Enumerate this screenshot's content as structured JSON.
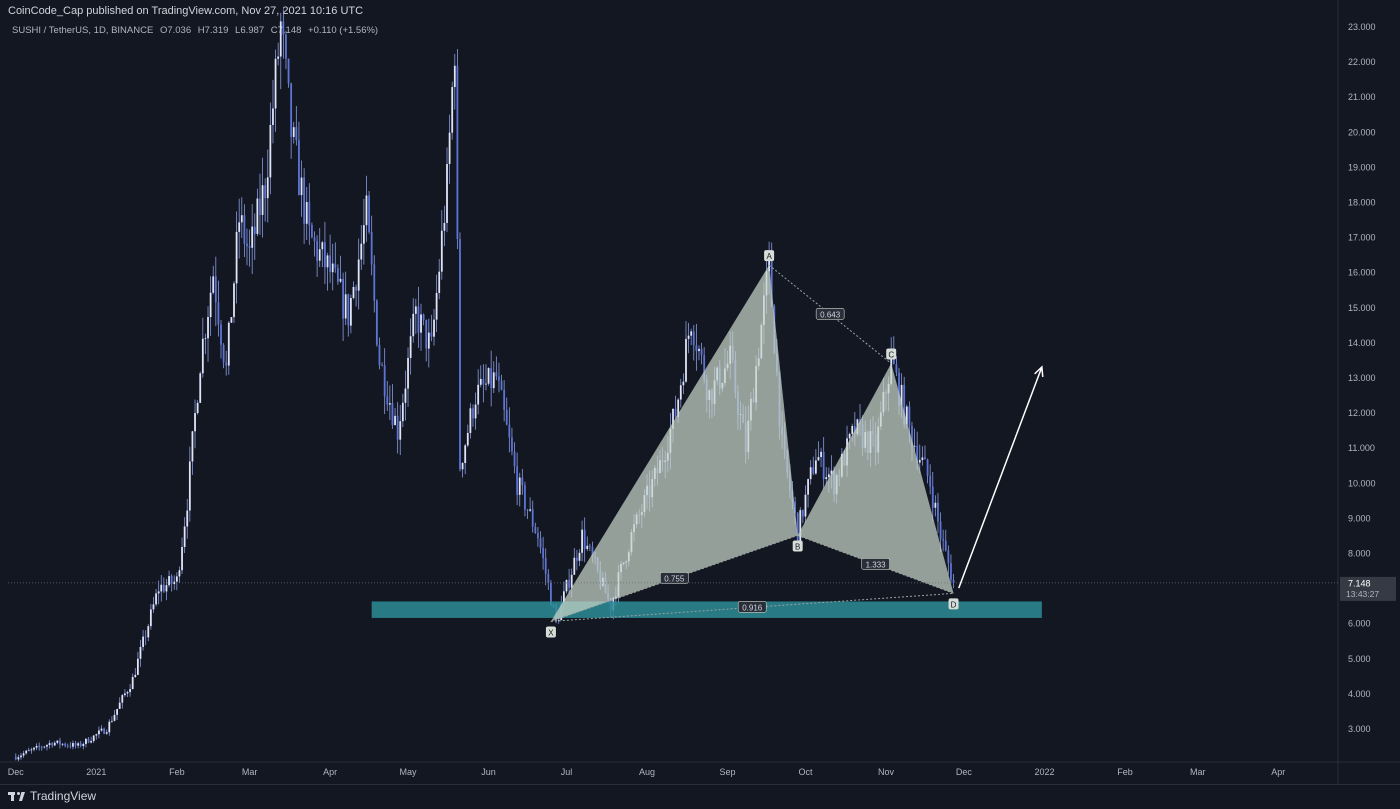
{
  "header": {
    "publisher_line": "CoinCode_Cap published on TradingView.com, Nov 27, 2021 10:16 UTC"
  },
  "legend": {
    "symbol": "SUSHI / TetherUS, 1D, BINANCE",
    "open": "O7.036",
    "high": "H7.319",
    "low": "L6.987",
    "close": "C7.148",
    "change": "+0.110 (+1.56%)"
  },
  "footer": {
    "brand": "TradingView"
  },
  "chart_data": {
    "type": "candlestick",
    "x_axis_labels": [
      "Dec",
      "2021",
      "Feb",
      "Mar",
      "Apr",
      "May",
      "Jun",
      "Jul",
      "Aug",
      "Sep",
      "Oct",
      "Nov",
      "Dec",
      "2022",
      "Feb",
      "Mar",
      "Apr"
    ],
    "y_axis_labels": [
      "3.000",
      "4.000",
      "5.000",
      "6.000",
      "7.000",
      "8.000",
      "9.000",
      "10.000",
      "11.000",
      "12.000",
      "13.000",
      "14.000",
      "15.000",
      "16.000",
      "17.000",
      "18.000",
      "19.000",
      "20.000",
      "21.000",
      "22.000",
      "23.000"
    ],
    "ylim": [
      2.0,
      23.2
    ],
    "last_price": "7.148",
    "countdown": "13:43:27",
    "price_path": [
      [
        "2020-12-01",
        2.2
      ],
      [
        "2020-12-15",
        2.6
      ],
      [
        "2020-12-25",
        2.5
      ],
      [
        "2021-01-05",
        3.0
      ],
      [
        "2021-01-15",
        4.4
      ],
      [
        "2021-01-25",
        7.0
      ],
      [
        "2021-02-01",
        7.2
      ],
      [
        "2021-02-05",
        9.5
      ],
      [
        "2021-02-10",
        13.5
      ],
      [
        "2021-02-15",
        16.0
      ],
      [
        "2021-02-20",
        13.2
      ],
      [
        "2021-02-25",
        17.5
      ],
      [
        "2021-03-01",
        16.5
      ],
      [
        "2021-03-07",
        18.5
      ],
      [
        "2021-03-13",
        23.0
      ],
      [
        "2021-03-17",
        20.0
      ],
      [
        "2021-03-24",
        17.0
      ],
      [
        "2021-04-01",
        16.0
      ],
      [
        "2021-04-08",
        14.8
      ],
      [
        "2021-04-15",
        17.6
      ],
      [
        "2021-04-20",
        13.5
      ],
      [
        "2021-04-27",
        11.5
      ],
      [
        "2021-05-04",
        14.8
      ],
      [
        "2021-05-10",
        13.8
      ],
      [
        "2021-05-16",
        18.5
      ],
      [
        "2021-05-19",
        22.5
      ],
      [
        "2021-05-21",
        10.5
      ],
      [
        "2021-05-27",
        12.5
      ],
      [
        "2021-06-04",
        13.0
      ],
      [
        "2021-06-12",
        10.0
      ],
      [
        "2021-06-20",
        8.5
      ],
      [
        "2021-06-27",
        6.0
      ],
      [
        "2021-07-07",
        8.5
      ],
      [
        "2021-07-18",
        6.5
      ],
      [
        "2021-07-26",
        8.5
      ],
      [
        "2021-08-06",
        10.5
      ],
      [
        "2021-08-12",
        12.0
      ],
      [
        "2021-08-18",
        14.7
      ],
      [
        "2021-08-25",
        12.5
      ],
      [
        "2021-09-02",
        13.5
      ],
      [
        "2021-09-08",
        11.0
      ],
      [
        "2021-09-17",
        16.2
      ],
      [
        "2021-09-22",
        11.0
      ],
      [
        "2021-09-28",
        8.6
      ],
      [
        "2021-10-05",
        10.8
      ],
      [
        "2021-10-12",
        10.0
      ],
      [
        "2021-10-20",
        11.5
      ],
      [
        "2021-10-28",
        11.0
      ],
      [
        "2021-11-03",
        13.5
      ],
      [
        "2021-11-10",
        11.5
      ],
      [
        "2021-11-18",
        10.0
      ],
      [
        "2021-11-22",
        8.5
      ],
      [
        "2021-11-27",
        7.148
      ]
    ],
    "support_zone": {
      "from": "2021-04-17",
      "to": "2021-12-31",
      "low": 6.15,
      "high": 6.62
    },
    "harmonic_pattern": {
      "points": [
        {
          "label": "X",
          "date": "2021-06-25",
          "price": 6.05
        },
        {
          "label": "A",
          "date": "2021-09-17",
          "price": 16.2
        },
        {
          "label": "B",
          "date": "2021-09-28",
          "price": 8.5
        },
        {
          "label": "C",
          "date": "2021-11-03",
          "price": 13.4
        },
        {
          "label": "D",
          "date": "2021-11-27",
          "price": 6.85
        }
      ],
      "ratios": [
        {
          "label": "0.643",
          "between": [
            "A",
            "C"
          ]
        },
        {
          "label": "0.755",
          "between": [
            "X",
            "B"
          ]
        },
        {
          "label": "1.333",
          "between": [
            "B",
            "D"
          ]
        },
        {
          "label": "0.916",
          "between": [
            "X",
            "D"
          ]
        }
      ]
    },
    "projection_arrow": {
      "from": [
        "2021-11-29",
        7.0
      ],
      "to": [
        "2021-12-31",
        13.3
      ]
    },
    "colors": {
      "background": "#131722",
      "candles": "#5d75d6",
      "wicks": "#8a9bdf",
      "pattern_fill": "#c8d4c8",
      "support_zone": "#2d8c96",
      "arrow": "#ffffff"
    }
  }
}
